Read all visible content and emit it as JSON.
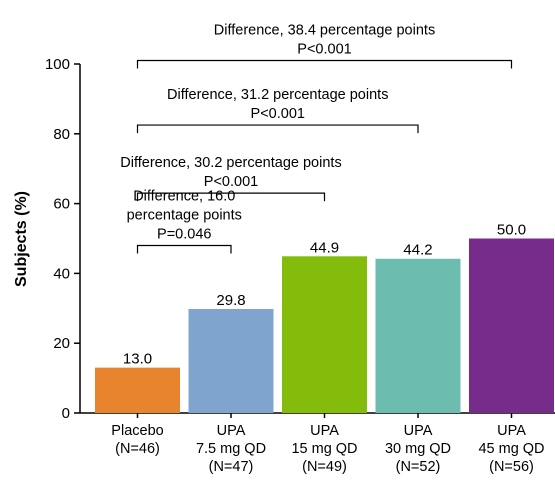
{
  "chart_data": {
    "type": "bar",
    "title": "",
    "xlabel": "",
    "ylabel": "Subjects (%)",
    "ylim": [
      0,
      100
    ],
    "yticks": [
      0,
      20,
      40,
      60,
      80,
      100
    ],
    "grid": false,
    "legend": "none",
    "categories": [
      {
        "lines": [
          "Placebo",
          "(N=46)"
        ]
      },
      {
        "lines": [
          "UPA",
          "7.5 mg QD",
          "(N=47)"
        ]
      },
      {
        "lines": [
          "UPA",
          "15 mg QD",
          "(N=49)"
        ]
      },
      {
        "lines": [
          "UPA",
          "30 mg QD",
          "(N=52)"
        ]
      },
      {
        "lines": [
          "UPA",
          "45 mg QD",
          "(N=56)"
        ]
      }
    ],
    "values": [
      13.0,
      29.8,
      44.9,
      44.2,
      50.0
    ],
    "value_labels": [
      "13.0",
      "29.8",
      "44.9",
      "44.2",
      "50.0"
    ],
    "colors": [
      "#e8832e",
      "#7fa5cf",
      "#84bc0c",
      "#6cbcb0",
      "#772b8a"
    ],
    "comparisons": [
      {
        "from": 0,
        "to": 1,
        "level": 48,
        "lines": [
          "Difference, 16.0",
          "percentage points",
          "P=0.046"
        ]
      },
      {
        "from": 0,
        "to": 2,
        "level": 63,
        "lines": [
          "Difference, 30.2 percentage points",
          "P<0.001"
        ]
      },
      {
        "from": 0,
        "to": 3,
        "level": 82.5,
        "lines": [
          "Difference, 31.2 percentage points",
          "P<0.001"
        ]
      },
      {
        "from": 0,
        "to": 4,
        "level": 101,
        "lines": [
          "Difference, 38.4 percentage points",
          "P<0.001"
        ]
      }
    ]
  }
}
